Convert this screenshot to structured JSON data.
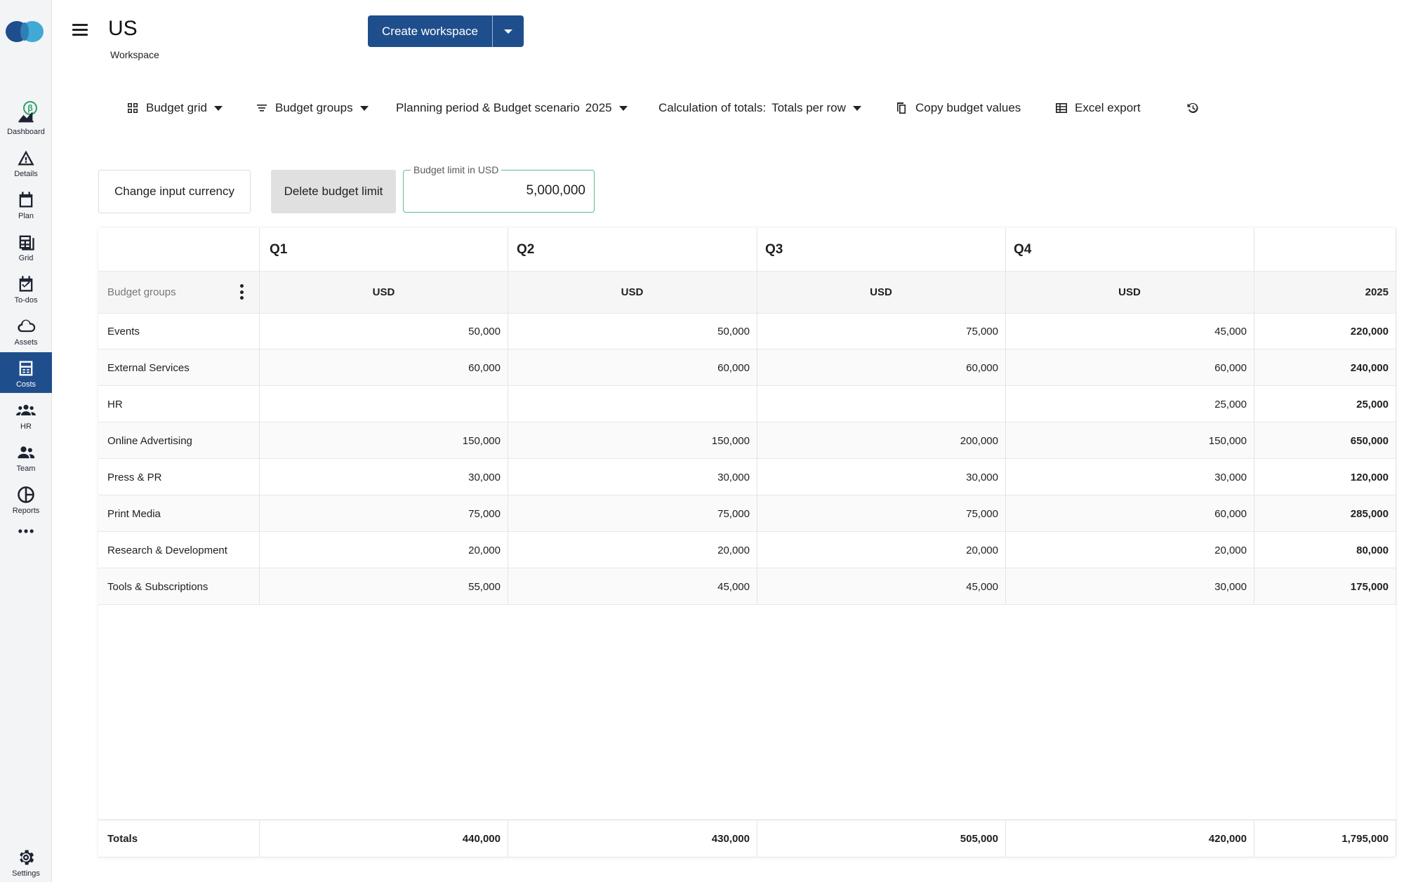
{
  "sidebar": {
    "items": [
      {
        "label": "Dashboard",
        "icon": "dashboard-icon"
      },
      {
        "label": "Details",
        "icon": "details-icon"
      },
      {
        "label": "Plan",
        "icon": "calendar-icon"
      },
      {
        "label": "Grid",
        "icon": "grid-icon"
      },
      {
        "label": "To-dos",
        "icon": "todo-icon"
      },
      {
        "label": "Assets",
        "icon": "cloud-icon"
      },
      {
        "label": "Costs",
        "icon": "costs-icon",
        "active": true
      },
      {
        "label": "HR",
        "icon": "hr-icon"
      },
      {
        "label": "Team",
        "icon": "team-icon"
      },
      {
        "label": "Reports",
        "icon": "reports-icon"
      }
    ],
    "settings_label": "Settings",
    "beta_badge": "β",
    "active_color": "#1f4e8c"
  },
  "header": {
    "title": "US",
    "subtitle": "Workspace",
    "create_button": "Create workspace"
  },
  "toolbar": {
    "budget_grid": "Budget grid",
    "budget_groups": "Budget groups",
    "planning_period": "Planning period & Budget scenario",
    "planning_year": "2025",
    "calc_label": "Calculation of totals:",
    "calc_value": "Totals per row",
    "copy_values": "Copy budget values",
    "excel_export": "Excel export"
  },
  "actions": {
    "change_currency": "Change input currency",
    "delete_limit": "Delete budget limit",
    "limit_label": "Budget limit in USD",
    "limit_value": "5,000,000",
    "accent_color": "#5bbf87"
  },
  "grid": {
    "first_col_header": "Budget groups",
    "quarters": [
      "Q1",
      "Q2",
      "Q3",
      "Q4"
    ],
    "currency_headers": [
      "USD",
      "USD",
      "USD",
      "USD"
    ],
    "total_col_header": "2025",
    "rows": [
      {
        "name": "Events",
        "values": [
          "50,000",
          "50,000",
          "75,000",
          "45,000"
        ],
        "total": "220,000"
      },
      {
        "name": "External Services",
        "values": [
          "60,000",
          "60,000",
          "60,000",
          "60,000"
        ],
        "total": "240,000"
      },
      {
        "name": "HR",
        "values": [
          "",
          "",
          "",
          "25,000"
        ],
        "total": "25,000"
      },
      {
        "name": "Online Advertising",
        "values": [
          "150,000",
          "150,000",
          "200,000",
          "150,000"
        ],
        "total": "650,000"
      },
      {
        "name": "Press & PR",
        "values": [
          "30,000",
          "30,000",
          "30,000",
          "30,000"
        ],
        "total": "120,000"
      },
      {
        "name": "Print Media",
        "values": [
          "75,000",
          "75,000",
          "75,000",
          "60,000"
        ],
        "total": "285,000"
      },
      {
        "name": "Research & Development",
        "values": [
          "20,000",
          "20,000",
          "20,000",
          "20,000"
        ],
        "total": "80,000"
      },
      {
        "name": "Tools & Subscriptions",
        "values": [
          "55,000",
          "45,000",
          "45,000",
          "30,000"
        ],
        "total": "175,000"
      }
    ],
    "totals": {
      "label": "Totals",
      "values": [
        "440,000",
        "430,000",
        "505,000",
        "420,000"
      ],
      "total": "1,795,000"
    }
  }
}
